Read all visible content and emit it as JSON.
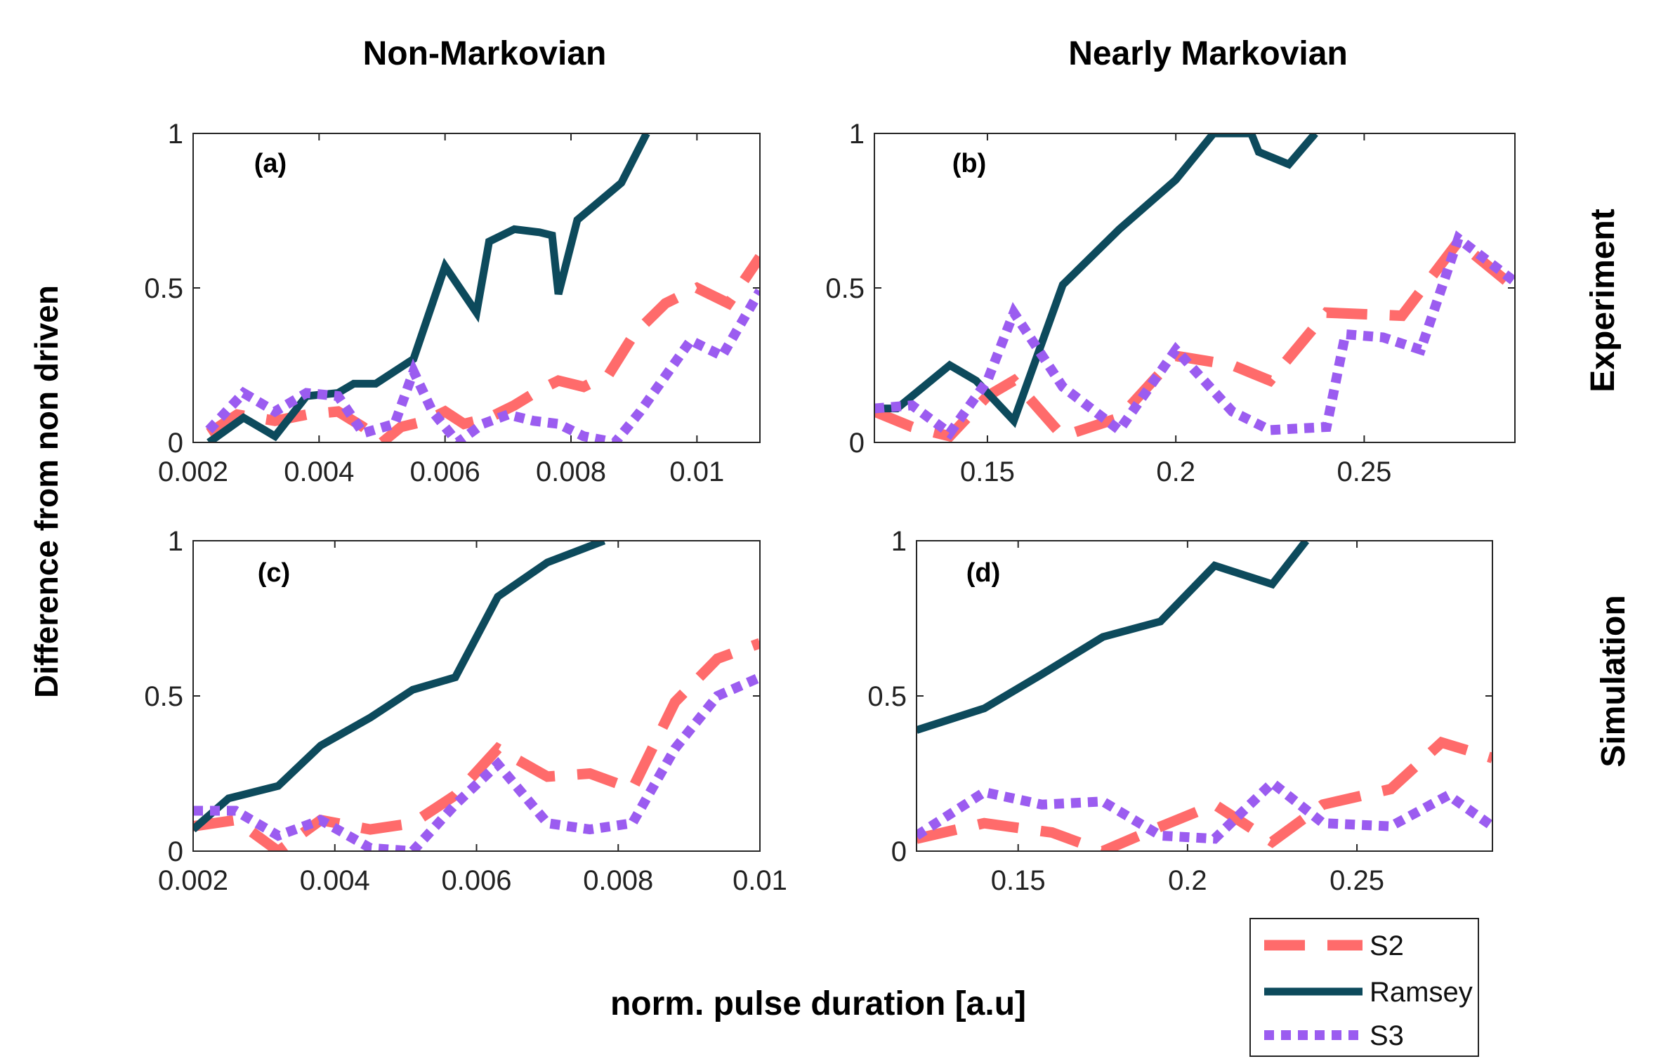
{
  "figure": {
    "column_titles": [
      "Non-Markovian",
      "Nearly Markovian"
    ],
    "row_titles": [
      "Experiment",
      "Simulation"
    ],
    "ylabel": "Difference from non driven",
    "xlabel": "norm. pulse duration  [a.u]"
  },
  "colors": {
    "S2": "#FF6B6B",
    "Ramsey": "#0D4A5C",
    "S3": "#9B5CF0"
  },
  "legend": [
    {
      "name": "S2",
      "label": "S2",
      "style": "dashed"
    },
    {
      "name": "Ramsey",
      "label": "Ramsey",
      "style": "solid"
    },
    {
      "name": "S3",
      "label": "S3",
      "style": "dotted"
    }
  ],
  "chart_data": [
    {
      "type": "line",
      "label": "(a)",
      "xlim": [
        0.002,
        0.011
      ],
      "ylim": [
        0,
        1
      ],
      "xticks": [
        0.002,
        0.004,
        0.006,
        0.008,
        0.01
      ],
      "xtick_labels": [
        "0.002",
        "0.004",
        "0.006",
        "0.008",
        "0.01"
      ],
      "yticks": [
        0,
        0.5,
        1
      ],
      "ytick_labels": [
        "0",
        "0.5",
        "1"
      ],
      "series": [
        {
          "name": "S2",
          "x": [
            0.00225,
            0.0027,
            0.0033,
            0.0038,
            0.0043,
            0.0047,
            0.005,
            0.0053,
            0.0057,
            0.006,
            0.0063,
            0.0067,
            0.0071,
            0.0075,
            0.0078,
            0.0082,
            0.0086,
            0.009,
            0.0095,
            0.01,
            0.0105,
            0.011
          ],
          "y": [
            0.03,
            0.09,
            0.07,
            0.09,
            0.1,
            0.05,
            0.0,
            0.05,
            0.07,
            0.1,
            0.06,
            0.08,
            0.12,
            0.17,
            0.2,
            0.18,
            0.22,
            0.35,
            0.45,
            0.5,
            0.45,
            0.6
          ]
        },
        {
          "name": "Ramsey",
          "x": [
            0.00225,
            0.0028,
            0.0033,
            0.0038,
            0.0043,
            0.00455,
            0.0049,
            0.0055,
            0.006,
            0.0065,
            0.0067,
            0.0071,
            0.0075,
            0.0077,
            0.0078,
            0.0081,
            0.0088,
            0.0092
          ],
          "y": [
            0.0,
            0.08,
            0.02,
            0.15,
            0.16,
            0.19,
            0.19,
            0.27,
            0.57,
            0.42,
            0.65,
            0.69,
            0.68,
            0.67,
            0.48,
            0.72,
            0.84,
            1.0
          ]
        },
        {
          "name": "S3",
          "x": [
            0.00225,
            0.0028,
            0.0033,
            0.0038,
            0.0043,
            0.0047,
            0.0052,
            0.0055,
            0.0058,
            0.0062,
            0.0066,
            0.007,
            0.0074,
            0.0078,
            0.0082,
            0.0087,
            0.0091,
            0.0099,
            0.0104,
            0.011
          ],
          "y": [
            0.04,
            0.16,
            0.1,
            0.16,
            0.15,
            0.03,
            0.06,
            0.23,
            0.1,
            0.0,
            0.06,
            0.09,
            0.07,
            0.06,
            0.02,
            0.0,
            0.1,
            0.33,
            0.28,
            0.49
          ]
        }
      ]
    },
    {
      "type": "line",
      "label": "(b)",
      "xlim": [
        0.12,
        0.29
      ],
      "ylim": [
        0,
        1
      ],
      "xticks": [
        0.15,
        0.2,
        0.25
      ],
      "xtick_labels": [
        "0.15",
        "0.2",
        "0.25"
      ],
      "yticks": [
        0,
        0.5,
        1
      ],
      "ytick_labels": [
        "0",
        "0.5",
        "1"
      ],
      "series": [
        {
          "name": "S2",
          "x": [
            0.12,
            0.13,
            0.14,
            0.15,
            0.157,
            0.17,
            0.185,
            0.2,
            0.215,
            0.225,
            0.24,
            0.26,
            0.275,
            0.29
          ],
          "y": [
            0.1,
            0.05,
            0.02,
            0.15,
            0.2,
            0.02,
            0.08,
            0.28,
            0.25,
            0.2,
            0.42,
            0.41,
            0.65,
            0.5
          ]
        },
        {
          "name": "Ramsey",
          "x": [
            0.12,
            0.126,
            0.14,
            0.147,
            0.157,
            0.17,
            0.185,
            0.2,
            0.21,
            0.22,
            0.222,
            0.23,
            0.237
          ],
          "y": [
            0.11,
            0.11,
            0.25,
            0.2,
            0.07,
            0.51,
            0.69,
            0.85,
            1.0,
            1.0,
            0.94,
            0.9,
            1.0
          ]
        },
        {
          "name": "S3",
          "x": [
            0.12,
            0.13,
            0.14,
            0.15,
            0.157,
            0.17,
            0.185,
            0.2,
            0.215,
            0.225,
            0.24,
            0.245,
            0.255,
            0.265,
            0.275,
            0.29
          ],
          "y": [
            0.11,
            0.12,
            0.03,
            0.2,
            0.42,
            0.18,
            0.04,
            0.3,
            0.1,
            0.04,
            0.05,
            0.35,
            0.34,
            0.3,
            0.66,
            0.52
          ]
        }
      ]
    },
    {
      "type": "line",
      "label": "(c)",
      "xlim": [
        0.002,
        0.01
      ],
      "ylim": [
        0,
        1
      ],
      "xticks": [
        0.002,
        0.004,
        0.006,
        0.008,
        0.01
      ],
      "xtick_labels": [
        "0.002",
        "0.004",
        "0.006",
        "0.008",
        "0.01"
      ],
      "yticks": [
        0,
        0.5,
        1
      ],
      "ytick_labels": [
        "0",
        "0.5",
        "1"
      ],
      "series": [
        {
          "name": "S2",
          "x": [
            0.002,
            0.0026,
            0.0032,
            0.0038,
            0.0045,
            0.0051,
            0.0057,
            0.0063,
            0.007,
            0.0076,
            0.0082,
            0.0088,
            0.0094,
            0.01
          ],
          "y": [
            0.08,
            0.1,
            0.0,
            0.1,
            0.07,
            0.09,
            0.18,
            0.33,
            0.24,
            0.25,
            0.2,
            0.48,
            0.62,
            0.67
          ]
        },
        {
          "name": "Ramsey",
          "x": [
            0.002,
            0.0025,
            0.0032,
            0.0038,
            0.0045,
            0.0051,
            0.0057,
            0.0063,
            0.007,
            0.0078
          ],
          "y": [
            0.07,
            0.17,
            0.21,
            0.34,
            0.43,
            0.52,
            0.56,
            0.82,
            0.93,
            1.0
          ]
        },
        {
          "name": "S3",
          "x": [
            0.002,
            0.0026,
            0.0032,
            0.0038,
            0.0045,
            0.0051,
            0.0057,
            0.0063,
            0.007,
            0.0076,
            0.0082,
            0.0088,
            0.0094,
            0.01
          ],
          "y": [
            0.13,
            0.13,
            0.05,
            0.1,
            0.01,
            0.0,
            0.15,
            0.28,
            0.09,
            0.07,
            0.09,
            0.33,
            0.5,
            0.56
          ]
        }
      ]
    },
    {
      "type": "line",
      "label": "(d)",
      "xlim": [
        0.12,
        0.29
      ],
      "ylim": [
        0,
        1
      ],
      "xticks": [
        0.15,
        0.2,
        0.25
      ],
      "xtick_labels": [
        "0.15",
        "0.2",
        "0.25"
      ],
      "yticks": [
        0,
        0.5,
        1
      ],
      "ytick_labels": [
        "0",
        "0.5",
        "1"
      ],
      "series": [
        {
          "name": "S2",
          "x": [
            0.12,
            0.14,
            0.16,
            0.175,
            0.19,
            0.208,
            0.225,
            0.24,
            0.26,
            0.275,
            0.29
          ],
          "y": [
            0.04,
            0.09,
            0.06,
            0.0,
            0.07,
            0.15,
            0.03,
            0.15,
            0.2,
            0.35,
            0.3
          ]
        },
        {
          "name": "Ramsey",
          "x": [
            0.12,
            0.14,
            0.157,
            0.175,
            0.192,
            0.208,
            0.225,
            0.235
          ],
          "y": [
            0.39,
            0.46,
            0.57,
            0.69,
            0.74,
            0.92,
            0.86,
            1.0
          ]
        },
        {
          "name": "S3",
          "x": [
            0.12,
            0.14,
            0.157,
            0.175,
            0.192,
            0.208,
            0.225,
            0.24,
            0.26,
            0.277,
            0.29
          ],
          "y": [
            0.05,
            0.19,
            0.15,
            0.16,
            0.05,
            0.04,
            0.22,
            0.09,
            0.08,
            0.18,
            0.08
          ]
        }
      ]
    }
  ]
}
